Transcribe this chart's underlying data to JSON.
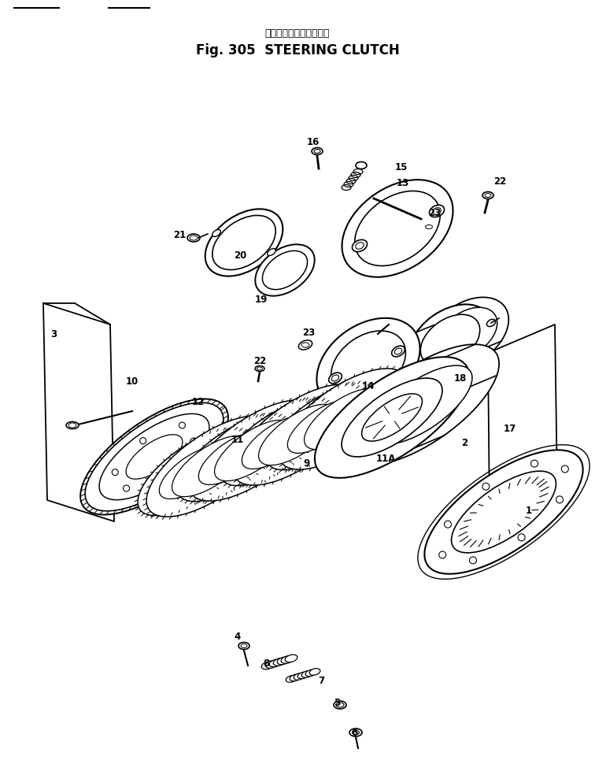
{
  "title_japanese": "ステアリング　クラッチ",
  "title_english": "Fig. 305  STEERING CLUTCH",
  "background_color": "#ffffff",
  "line_color": "#000000",
  "fig_width": 7.56,
  "fig_height": 9.84,
  "dpi": 100
}
